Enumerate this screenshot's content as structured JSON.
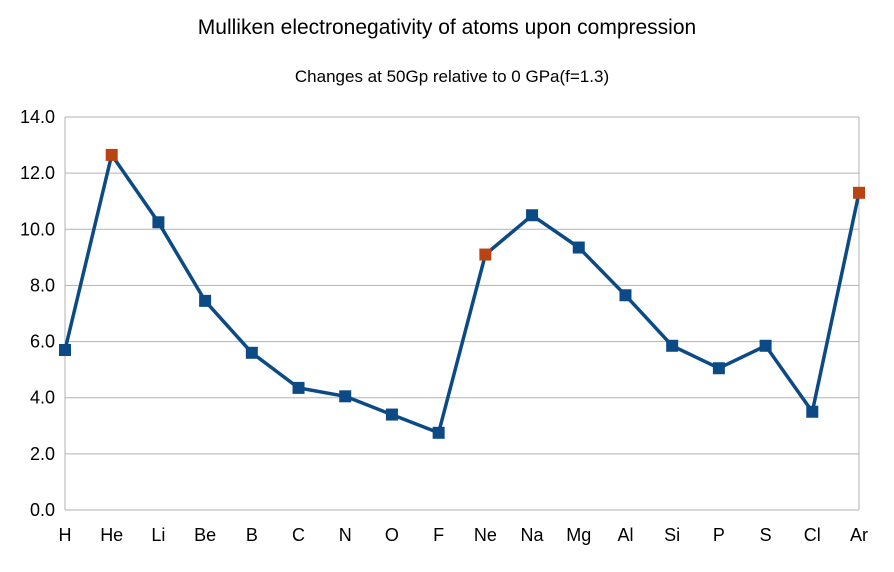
{
  "chart_data": {
    "type": "line",
    "title": "Mulliken electronegativity of atoms upon compression",
    "subtitle": "Changes at 50Gp relative to 0 GPa(f=1.3)",
    "xlabel": "",
    "ylabel": "",
    "categories": [
      "H",
      "He",
      "Li",
      "Be",
      "B",
      "C",
      "N",
      "O",
      "F",
      "Ne",
      "Na",
      "Mg",
      "Al",
      "Si",
      "P",
      "S",
      "Cl",
      "Ar"
    ],
    "series": [
      {
        "values": [
          5.7,
          12.65,
          10.25,
          7.45,
          5.6,
          4.35,
          4.05,
          3.4,
          2.75,
          9.1,
          10.5,
          9.35,
          7.65,
          5.85,
          5.05,
          5.85,
          3.5,
          11.3
        ]
      }
    ],
    "highlighted_categories": [
      "He",
      "Ne",
      "Ar"
    ],
    "ylim": [
      0,
      14
    ],
    "yticks": [
      "0.0",
      "2.0",
      "4.0",
      "6.0",
      "8.0",
      "10.0",
      "12.0",
      "14.0"
    ],
    "grid": "horizontal",
    "legend": "none",
    "colors": {
      "line": "#0b4a85",
      "marker": "#0b4a85",
      "marker_highlight": "#b84413",
      "grid": "#b3b3b3"
    }
  }
}
